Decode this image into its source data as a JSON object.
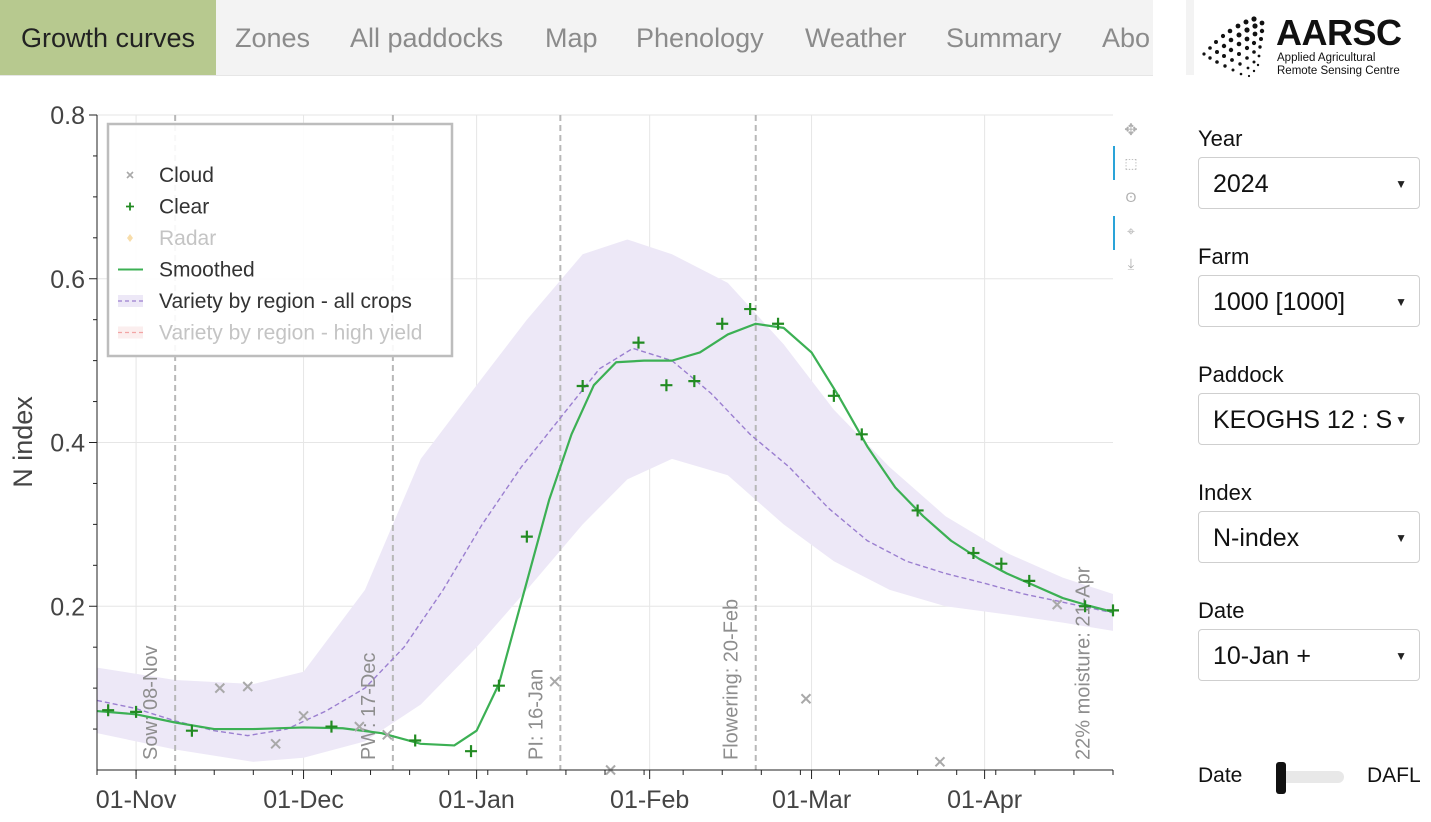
{
  "tabs": [
    {
      "label": "Growth curves",
      "active": true
    },
    {
      "label": "Zones"
    },
    {
      "label": "All paddocks"
    },
    {
      "label": "Map"
    },
    {
      "label": "Phenology"
    },
    {
      "label": "Weather"
    },
    {
      "label": "Summary"
    },
    {
      "label": "Abo"
    }
  ],
  "logo": {
    "title": "AARSC",
    "subtitle_line1": "Applied Agricultural",
    "subtitle_line2": "Remote Sensing Centre"
  },
  "controls": {
    "year": {
      "label": "Year",
      "value": "2024"
    },
    "farm": {
      "label": "Farm",
      "value": "1000 [1000]"
    },
    "paddock": {
      "label": "Paddock",
      "value": "KEOGHS 12 : S"
    },
    "index": {
      "label": "Index",
      "value": "N-index"
    },
    "date": {
      "label": "Date",
      "value": "10-Jan +"
    },
    "toggle": {
      "left": "Date",
      "right": "DAFL",
      "state": "Date"
    }
  },
  "modebar": [
    "pan-icon",
    "zoom-icon",
    "lasso-icon",
    "select-icon",
    "download-icon"
  ],
  "colors": {
    "clear": "#228b22",
    "cloud": "#a9a9a9",
    "smoothed": "#3cb054",
    "variety": "#9b7fd0",
    "band": "#ede8f7",
    "radar": "#f3c772",
    "highyield": "#f2a5a5",
    "tab_active": "#b7c98f"
  },
  "chart_data": {
    "type": "scatter",
    "ylabel": "N index",
    "ylim": [
      0,
      0.8
    ],
    "yticks": [
      0.2,
      0.4,
      0.6,
      0.8
    ],
    "xlim": [
      "2023-10-25",
      "2024-04-24"
    ],
    "xticks": [
      {
        "date": "2023-11-01",
        "label": "01-Nov"
      },
      {
        "date": "2023-12-01",
        "label": "01-Dec"
      },
      {
        "date": "2024-01-01",
        "label": "01-Jan"
      },
      {
        "date": "2024-02-01",
        "label": "01-Feb"
      },
      {
        "date": "2024-03-01",
        "label": "01-Mar"
      },
      {
        "date": "2024-04-01",
        "label": "01-Apr"
      }
    ],
    "grid": true,
    "legend_position": "top-left",
    "legend": [
      {
        "name": "Cloud",
        "marker": "x",
        "active": true
      },
      {
        "name": "Clear",
        "marker": "+",
        "active": true
      },
      {
        "name": "Radar",
        "marker": "diamond",
        "active": false
      },
      {
        "name": "Smoothed",
        "marker": "line",
        "active": true
      },
      {
        "name": "Variety by region - all crops",
        "marker": "dash",
        "active": true
      },
      {
        "name": "Variety by region - high yield",
        "marker": "dash",
        "active": false
      }
    ],
    "events": [
      {
        "date": "2023-11-08",
        "label": "Sow: 08-Nov"
      },
      {
        "date": "2023-12-17",
        "label": "PW: 17-Dec"
      },
      {
        "date": "2024-01-16",
        "label": "PI: 16-Jan"
      },
      {
        "date": "2024-02-20",
        "label": "Flowering: 20-Feb"
      },
      {
        "date": "2024-04-21",
        "label": "22% moisture: 21-Apr"
      }
    ],
    "series": [
      {
        "name": "Clear",
        "points": [
          [
            "2023-10-27",
            0.073
          ],
          [
            "2023-11-01",
            0.071
          ],
          [
            "2023-11-11",
            0.048
          ],
          [
            "2023-12-06",
            0.053
          ],
          [
            "2023-12-21",
            0.036
          ],
          [
            "2023-12-31",
            0.023
          ],
          [
            "2024-01-05",
            0.103
          ],
          [
            "2024-01-10",
            0.285
          ],
          [
            "2024-01-20",
            0.469
          ],
          [
            "2024-01-30",
            0.522
          ],
          [
            "2024-02-04",
            0.47
          ],
          [
            "2024-02-09",
            0.475
          ],
          [
            "2024-02-14",
            0.545
          ],
          [
            "2024-02-19",
            0.563
          ],
          [
            "2024-02-24",
            0.545
          ],
          [
            "2024-03-05",
            0.457
          ],
          [
            "2024-03-10",
            0.41
          ],
          [
            "2024-03-20",
            0.317
          ],
          [
            "2024-03-30",
            0.265
          ],
          [
            "2024-04-04",
            0.252
          ],
          [
            "2024-04-09",
            0.231
          ],
          [
            "2024-04-19",
            0.2
          ],
          [
            "2024-04-24",
            0.195
          ]
        ]
      },
      {
        "name": "Cloud",
        "points": [
          [
            "2023-11-16",
            0.1
          ],
          [
            "2023-11-21",
            0.102
          ],
          [
            "2023-11-26",
            0.032
          ],
          [
            "2023-12-01",
            0.066
          ],
          [
            "2023-12-11",
            0.053
          ],
          [
            "2023-12-16",
            0.043
          ],
          [
            "2024-01-15",
            0.108
          ],
          [
            "2024-01-25",
            0.0
          ],
          [
            "2024-02-29",
            0.087
          ],
          [
            "2024-03-24",
            0.01
          ],
          [
            "2024-04-14",
            0.202
          ]
        ]
      },
      {
        "name": "Smoothed",
        "points": [
          [
            "2023-10-25",
            0.072
          ],
          [
            "2023-11-01",
            0.068
          ],
          [
            "2023-11-08",
            0.058
          ],
          [
            "2023-11-15",
            0.05
          ],
          [
            "2023-11-22",
            0.05
          ],
          [
            "2023-12-01",
            0.052
          ],
          [
            "2023-12-08",
            0.051
          ],
          [
            "2023-12-15",
            0.045
          ],
          [
            "2023-12-22",
            0.032
          ],
          [
            "2023-12-28",
            0.03
          ],
          [
            "2024-01-01",
            0.048
          ],
          [
            "2024-01-05",
            0.105
          ],
          [
            "2024-01-10",
            0.23
          ],
          [
            "2024-01-14",
            0.33
          ],
          [
            "2024-01-18",
            0.41
          ],
          [
            "2024-01-22",
            0.47
          ],
          [
            "2024-01-26",
            0.498
          ],
          [
            "2024-01-31",
            0.5
          ],
          [
            "2024-02-05",
            0.5
          ],
          [
            "2024-02-10",
            0.51
          ],
          [
            "2024-02-15",
            0.532
          ],
          [
            "2024-02-20",
            0.545
          ],
          [
            "2024-02-25",
            0.54
          ],
          [
            "2024-03-01",
            0.51
          ],
          [
            "2024-03-06",
            0.455
          ],
          [
            "2024-03-11",
            0.395
          ],
          [
            "2024-03-16",
            0.345
          ],
          [
            "2024-03-21",
            0.31
          ],
          [
            "2024-03-26",
            0.28
          ],
          [
            "2024-03-31",
            0.258
          ],
          [
            "2024-04-05",
            0.24
          ],
          [
            "2024-04-10",
            0.225
          ],
          [
            "2024-04-15",
            0.21
          ],
          [
            "2024-04-20",
            0.2
          ],
          [
            "2024-04-24",
            0.193
          ]
        ]
      },
      {
        "name": "Variety by region - all crops",
        "points": [
          [
            "2023-10-25",
            0.085
          ],
          [
            "2023-11-01",
            0.075
          ],
          [
            "2023-11-08",
            0.06
          ],
          [
            "2023-11-15",
            0.048
          ],
          [
            "2023-11-21",
            0.042
          ],
          [
            "2023-11-28",
            0.05
          ],
          [
            "2023-12-05",
            0.072
          ],
          [
            "2023-12-12",
            0.1
          ],
          [
            "2023-12-19",
            0.15
          ],
          [
            "2023-12-26",
            0.22
          ],
          [
            "2024-01-02",
            0.3
          ],
          [
            "2024-01-09",
            0.37
          ],
          [
            "2024-01-16",
            0.43
          ],
          [
            "2024-01-23",
            0.49
          ],
          [
            "2024-01-29",
            0.515
          ],
          [
            "2024-02-05",
            0.5
          ],
          [
            "2024-02-12",
            0.46
          ],
          [
            "2024-02-19",
            0.41
          ],
          [
            "2024-02-26",
            0.37
          ],
          [
            "2024-03-04",
            0.32
          ],
          [
            "2024-03-11",
            0.28
          ],
          [
            "2024-03-18",
            0.255
          ],
          [
            "2024-03-25",
            0.24
          ],
          [
            "2024-04-01",
            0.228
          ],
          [
            "2024-04-08",
            0.215
          ],
          [
            "2024-04-15",
            0.205
          ],
          [
            "2024-04-24",
            0.192
          ]
        ]
      },
      {
        "name": "Variety range band",
        "upper": [
          [
            "2023-10-25",
            0.125
          ],
          [
            "2023-11-08",
            0.11
          ],
          [
            "2023-11-22",
            0.105
          ],
          [
            "2023-12-01",
            0.12
          ],
          [
            "2023-12-12",
            0.22
          ],
          [
            "2023-12-22",
            0.38
          ],
          [
            "2024-01-01",
            0.47
          ],
          [
            "2024-01-10",
            0.55
          ],
          [
            "2024-01-20",
            0.63
          ],
          [
            "2024-01-28",
            0.648
          ],
          [
            "2024-02-05",
            0.63
          ],
          [
            "2024-02-15",
            0.595
          ],
          [
            "2024-02-25",
            0.52
          ],
          [
            "2024-03-05",
            0.44
          ],
          [
            "2024-03-15",
            0.37
          ],
          [
            "2024-03-25",
            0.31
          ],
          [
            "2024-04-05",
            0.265
          ],
          [
            "2024-04-15",
            0.235
          ],
          [
            "2024-04-24",
            0.215
          ]
        ],
        "lower": [
          [
            "2023-10-25",
            0.045
          ],
          [
            "2023-11-08",
            0.025
          ],
          [
            "2023-11-22",
            0.01
          ],
          [
            "2023-12-01",
            0.015
          ],
          [
            "2023-12-12",
            0.035
          ],
          [
            "2023-12-22",
            0.08
          ],
          [
            "2024-01-01",
            0.15
          ],
          [
            "2024-01-10",
            0.22
          ],
          [
            "2024-01-20",
            0.3
          ],
          [
            "2024-01-28",
            0.355
          ],
          [
            "2024-02-05",
            0.38
          ],
          [
            "2024-02-15",
            0.36
          ],
          [
            "2024-02-25",
            0.3
          ],
          [
            "2024-03-05",
            0.255
          ],
          [
            "2024-03-15",
            0.22
          ],
          [
            "2024-03-25",
            0.2
          ],
          [
            "2024-04-05",
            0.19
          ],
          [
            "2024-04-15",
            0.18
          ],
          [
            "2024-04-24",
            0.17
          ]
        ]
      }
    ]
  }
}
